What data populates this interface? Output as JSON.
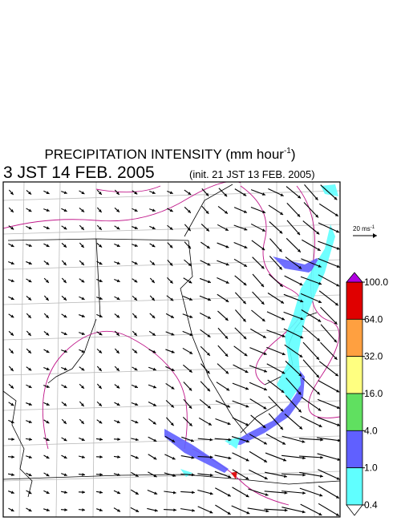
{
  "header": {
    "title": {
      "text": "PRECIPITATION INTENSITY (mm hour",
      "superscript": "-1",
      "close": ")"
    },
    "valid_time": "3 JST 14 FEB. 2005",
    "init_time": "(init. 21 JST 13 FEB. 2005)"
  },
  "wind_reference": {
    "text": "20 ms",
    "superscript": "-1"
  },
  "legend": {
    "levels": [
      {
        "value": 100,
        "label": "100.0"
      },
      {
        "value": 64,
        "label": "64.0"
      },
      {
        "value": 32,
        "label": "32.0"
      },
      {
        "value": 16,
        "label": "16.0"
      },
      {
        "value": 4,
        "label": "4.0"
      },
      {
        "value": 1,
        "label": "1.0"
      },
      {
        "value": 0.4,
        "label": "0.4"
      }
    ],
    "colors": [
      "#e00000",
      "#ffa040",
      "#ffff80",
      "#60e060",
      "#6060ff",
      "#60ffff"
    ],
    "over_color": "#b000e0",
    "under_color": "#ffffff"
  }
}
